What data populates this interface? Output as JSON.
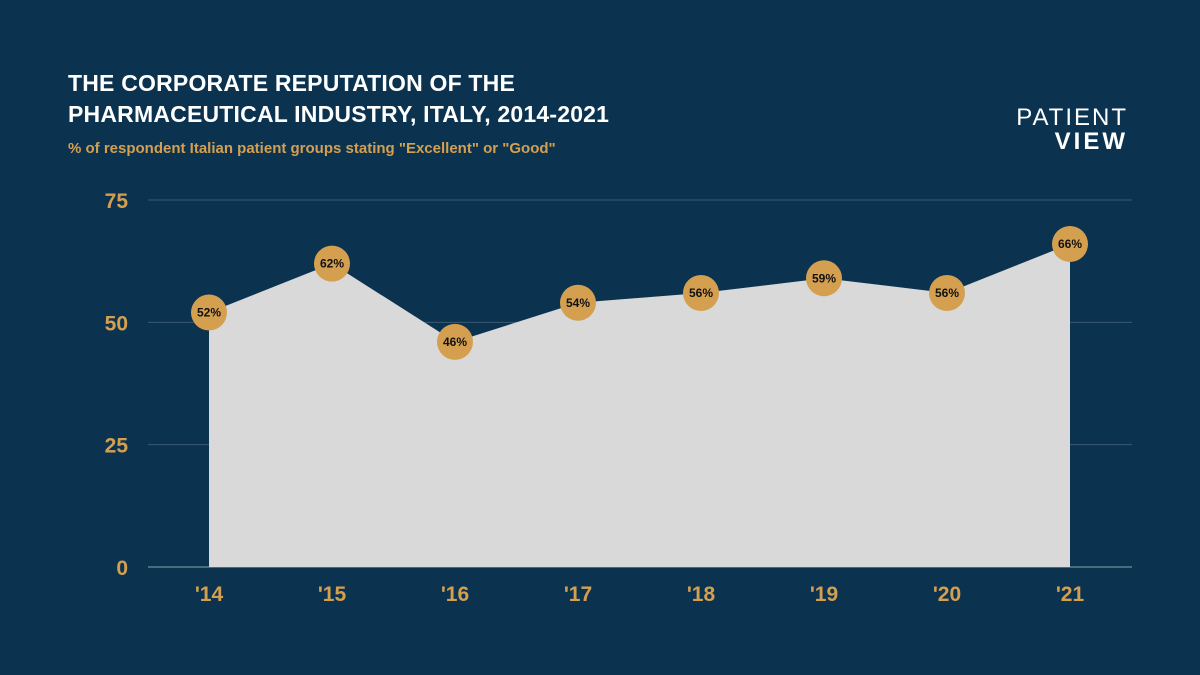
{
  "header": {
    "title_line1": "THE CORPORATE REPUTATION OF THE",
    "title_line2": "PHARMACEUTICAL INDUSTRY, ITALY, 2014-2021",
    "subtitle": "% of respondent Italian patient groups stating \"Excellent\" or \"Good\""
  },
  "logo": {
    "line1": "PATIENT",
    "line2": "VIEW"
  },
  "colors": {
    "background": "#0b3350",
    "area_fill": "#d9d9d9",
    "marker": "#d4a050",
    "accent_text": "#d4a050",
    "gridline": "#3a5a72"
  },
  "chart_data": {
    "type": "area",
    "title": "THE CORPORATE REPUTATION OF THE PHARMACEUTICAL INDUSTRY, ITALY, 2014-2021",
    "subtitle": "% of respondent Italian patient groups stating \"Excellent\" or \"Good\"",
    "categories": [
      "'14",
      "'15",
      "'16",
      "'17",
      "'18",
      "'19",
      "'20",
      "'21"
    ],
    "values": [
      52,
      62,
      46,
      54,
      56,
      59,
      56,
      66
    ],
    "data_labels": [
      "52%",
      "62%",
      "46%",
      "54%",
      "56%",
      "59%",
      "56%",
      "66%"
    ],
    "yticks": [
      0,
      25,
      50,
      75
    ],
    "ylim": [
      0,
      75
    ],
    "grid": true,
    "legend": "none"
  }
}
